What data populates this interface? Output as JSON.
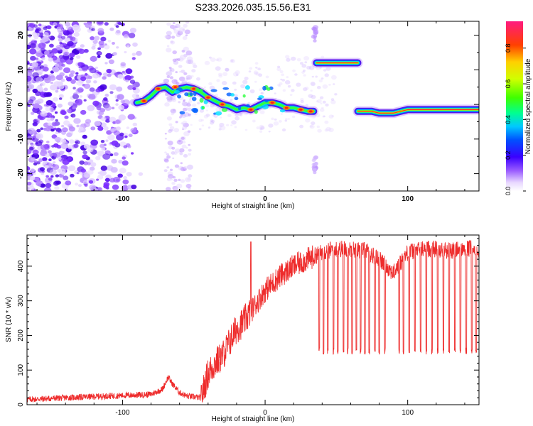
{
  "title": "S233.2026.035.15.56.E31",
  "chart_data": [
    {
      "type": "heatmap",
      "xlabel": "Height of straight line (km)",
      "ylabel": "Frequency (Hz)",
      "xlim": [
        -167,
        150
      ],
      "ylim": [
        -25,
        24
      ],
      "xticks": [
        -100,
        0,
        100
      ],
      "yticks": [
        -20,
        -10,
        0,
        10,
        20
      ],
      "colorbar": {
        "label": "Normalized spectral amplitude",
        "range": [
          0.0,
          0.95
        ],
        "ticks": [
          0.0,
          0.2,
          0.4,
          0.6,
          0.8
        ]
      },
      "tracks": [
        {
          "x": [
            -90,
            -85,
            -80,
            -75,
            -70,
            -65,
            -60,
            -55,
            -50,
            -45,
            -40,
            -35,
            -30,
            -25,
            -20,
            -15,
            -10,
            -5,
            0,
            5,
            10,
            15,
            20,
            25,
            30,
            34
          ],
          "y": [
            0.5,
            1.0,
            2.5,
            4.5,
            5.0,
            3.5,
            4.5,
            5.0,
            4.5,
            3.5,
            2.0,
            1.0,
            0,
            -0.5,
            -1.5,
            -1.0,
            -1.5,
            -0.5,
            0.5,
            0.5,
            0,
            -1,
            -1,
            -1.5,
            -2,
            -2
          ]
        },
        {
          "x": [
            36,
            40,
            45,
            50,
            55,
            60,
            65
          ],
          "y": [
            12,
            12,
            12,
            12,
            12,
            12,
            12
          ]
        },
        {
          "x": [
            65,
            70,
            75,
            80,
            85,
            90,
            95,
            100,
            105,
            110,
            115,
            120,
            125,
            130,
            135,
            140,
            145,
            150
          ],
          "y": [
            -2,
            -2,
            -2,
            -2.5,
            -2.5,
            -2.5,
            -2,
            -1.5,
            -1.5,
            -1.5,
            -1.5,
            -1.5,
            -1.5,
            -1.5,
            -1.5,
            -1.5,
            -1.5,
            -1.5
          ]
        }
      ]
    },
    {
      "type": "line",
      "xlabel": "Height of straight line (km)",
      "ylabel": "SNR (10 * v/v)",
      "xlim": [
        -167,
        150
      ],
      "ylim": [
        0,
        490
      ],
      "xticks": [
        -100,
        0,
        100
      ],
      "yticks": [
        0,
        100,
        200,
        300,
        400
      ],
      "series": [
        {
          "name": "SNR",
          "x": [
            -167,
            -140,
            -110,
            -90,
            -80,
            -72,
            -68,
            -65,
            -60,
            -55,
            -45,
            -40,
            -35,
            -30,
            -25,
            -20,
            -15,
            -10,
            -5,
            0,
            10,
            20,
            30,
            40,
            50,
            60,
            70,
            80,
            90,
            100,
            110,
            120,
            130,
            140,
            150
          ],
          "y": [
            15,
            20,
            25,
            28,
            30,
            45,
            80,
            60,
            35,
            25,
            20,
            90,
            120,
            140,
            180,
            220,
            240,
            270,
            300,
            330,
            370,
            400,
            420,
            440,
            450,
            450,
            445,
            420,
            380,
            440,
            450,
            450,
            445,
            450,
            450
          ]
        }
      ],
      "spike_peak": {
        "x": -10,
        "y": 470
      },
      "dropouts_x": [
        38,
        41,
        44,
        48,
        51,
        55,
        58,
        61,
        64,
        67,
        70,
        73,
        77,
        80,
        84,
        94,
        97,
        101,
        105,
        109,
        113,
        117,
        121,
        125,
        129,
        133,
        137,
        141,
        145,
        148
      ],
      "dropout_min": 145
    }
  ]
}
